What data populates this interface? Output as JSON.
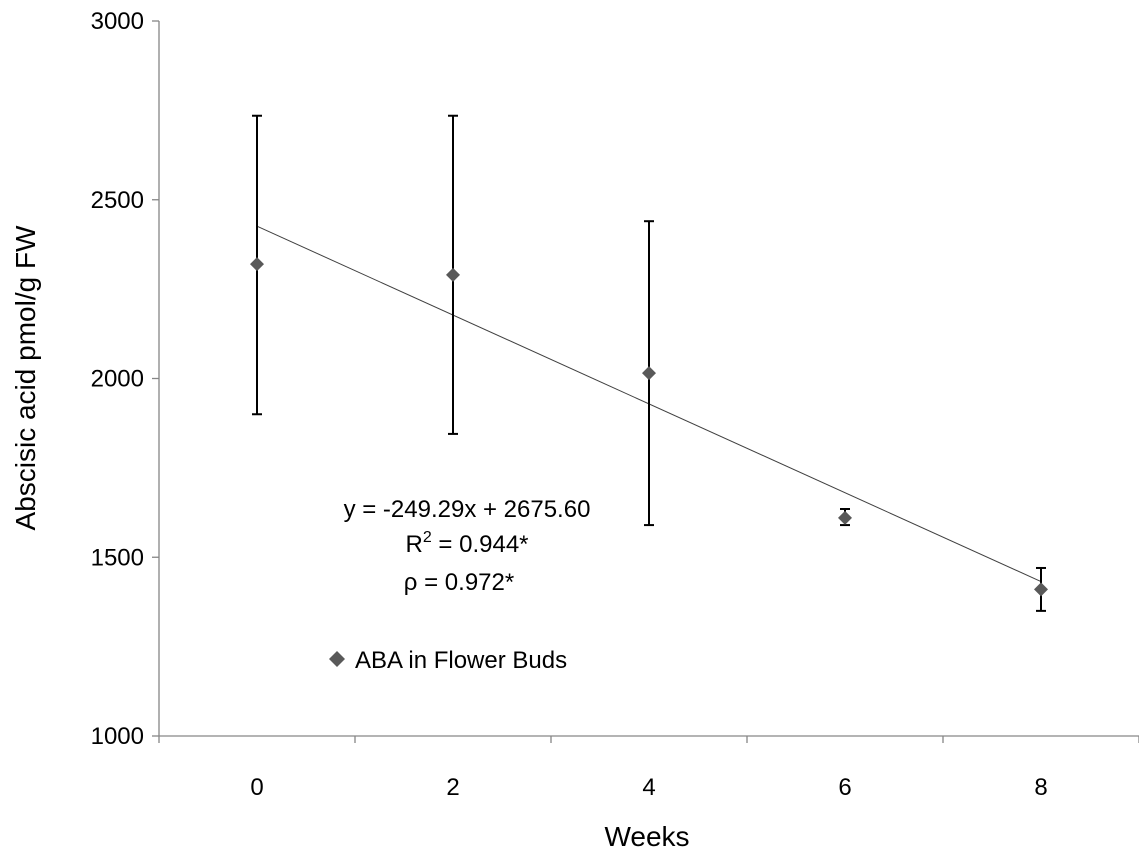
{
  "chart_data": {
    "type": "scatter",
    "xlabel": "Weeks",
    "ylabel": "Abscisic acid pmol/g FW",
    "xlim": [
      -1,
      9
    ],
    "ylim": [
      1000,
      3000
    ],
    "x_ticks": [
      0,
      2,
      4,
      6,
      8
    ],
    "x_tick_labels": [
      "0",
      "2",
      "4",
      "6",
      "8"
    ],
    "y_ticks": [
      1000,
      1500,
      2000,
      2500,
      3000
    ],
    "y_tick_labels": [
      "1000",
      "1500",
      "2000",
      "2500",
      "3000"
    ],
    "grid": false,
    "series": [
      {
        "name": "ABA in Flower Buds",
        "marker": "diamond",
        "color": "#595959",
        "points": [
          {
            "x": 0,
            "y": 2320,
            "err_low": 1900,
            "err_high": 2735
          },
          {
            "x": 2,
            "y": 2290,
            "err_low": 1845,
            "err_high": 2735
          },
          {
            "x": 4,
            "y": 2015,
            "err_low": 1590,
            "err_high": 2440
          },
          {
            "x": 6,
            "y": 1610,
            "err_low": 1590,
            "err_high": 1635
          },
          {
            "x": 8,
            "y": 1410,
            "err_low": 1350,
            "err_high": 1470
          }
        ]
      }
    ],
    "trendline": {
      "x_from": 0,
      "x_to": 8,
      "y_from": 2426,
      "y_to": 1432,
      "color": "#404040"
    },
    "annotations": {
      "equation": "y = -249.29x + 2675.60",
      "r2_prefix": "R",
      "r2_sup": "2",
      "r2_suffix": " = 0.944*",
      "rho": "ρ = 0.972*"
    },
    "legend": {
      "position": "lower-left",
      "label": "ABA in Flower Buds"
    }
  }
}
